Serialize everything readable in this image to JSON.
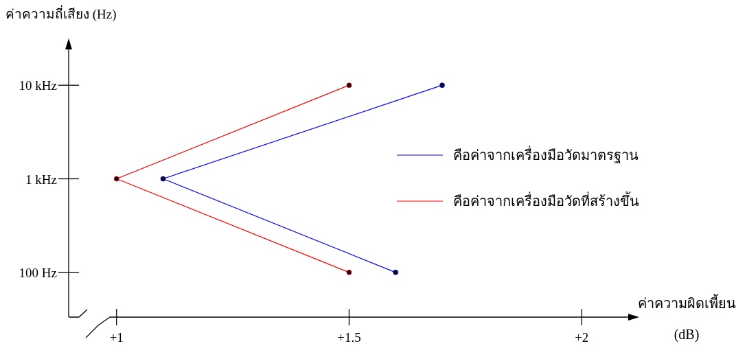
{
  "chart_data": {
    "type": "line",
    "orientation": "horizontal",
    "categories": [
      "10 kHz",
      "1 kHz",
      "100 Hz"
    ],
    "ylabel": "ค่าความถี่เสียง (Hz)",
    "xlabel": "ค่าความผิดเพี้ยน (dB)",
    "xlim": [
      0.9,
      2.1
    ],
    "xticks": [
      {
        "value": 1,
        "label": "+1"
      },
      {
        "value": 1.5,
        "label": "+1.5"
      },
      {
        "value": 2,
        "label": "+2"
      }
    ],
    "marker": "circle",
    "legend": "right",
    "series": [
      {
        "name": "คือค่าจากเครื่องมือวัดมาตรฐาน",
        "color": "#0000ff",
        "values": [
          1.7,
          1.1,
          1.6
        ]
      },
      {
        "name": "คือค่าจากเครื่องมือวัดที่สร้างขึ้น",
        "color": "#ff0000",
        "values": [
          1.5,
          1,
          1.5
        ]
      }
    ]
  }
}
